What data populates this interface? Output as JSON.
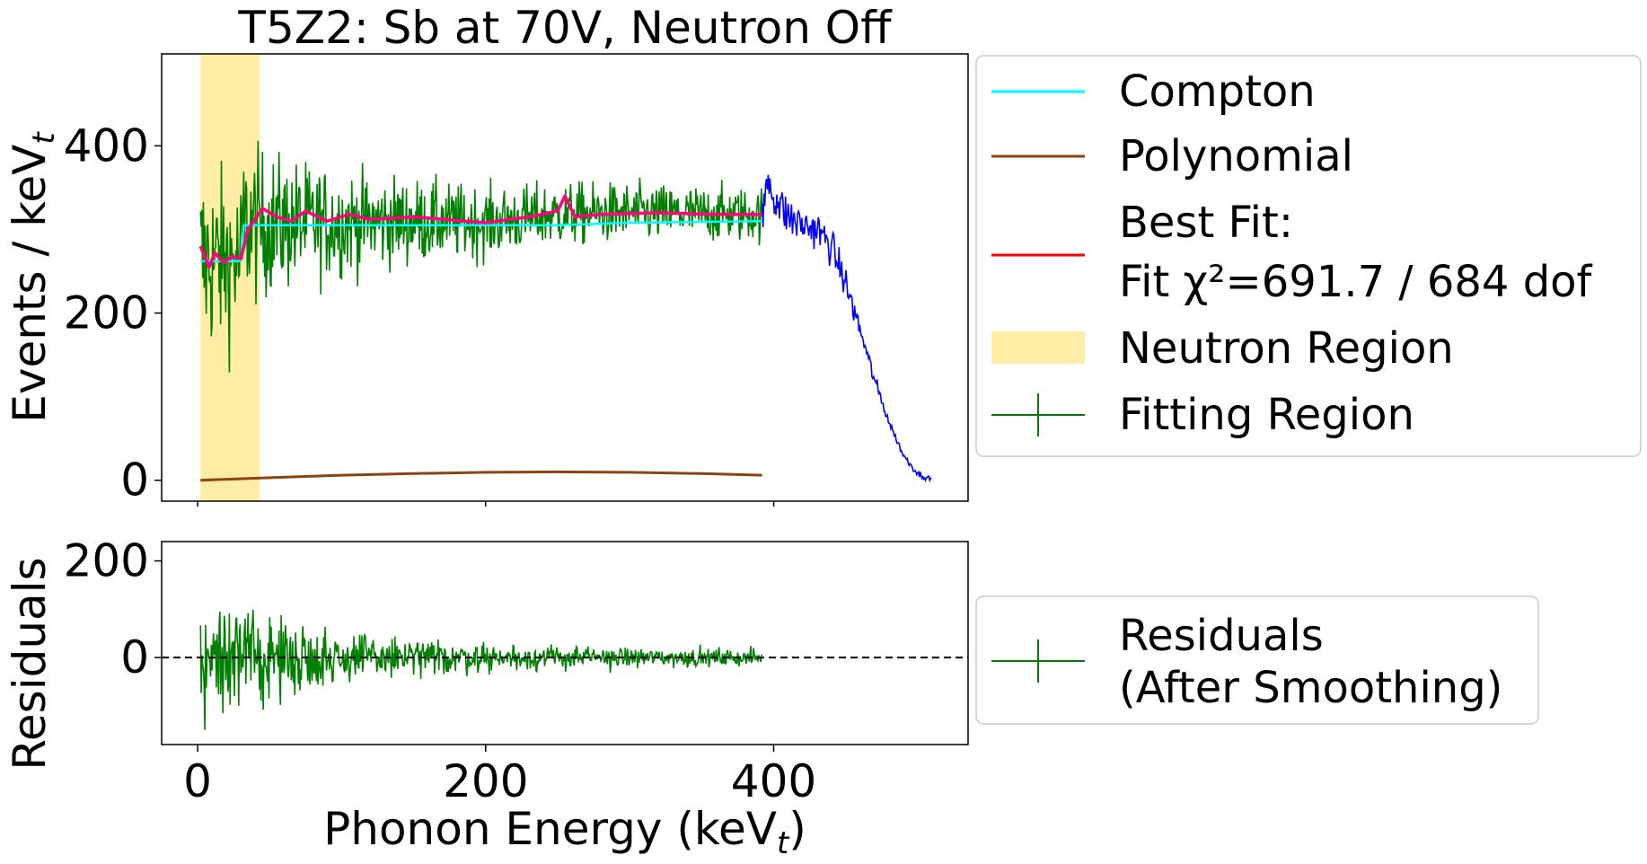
{
  "chart_data": [
    {
      "type": "line",
      "title": "T5Z2: Sb at 70V, Neutron Off",
      "ylabel": {
        "main": "Events / keV",
        "sub": "t"
      },
      "xlim": [
        -25,
        535
      ],
      "ylim": [
        -25,
        510
      ],
      "yticks": [
        0,
        200,
        400
      ],
      "ytick_labels": [
        "0",
        "200",
        "400"
      ],
      "neutron_region": {
        "x_start": 2,
        "x_end": 43
      },
      "series": [
        {
          "name": "Compton",
          "color": "#00ffff",
          "x": [
            2,
            30,
            32,
            40,
            100,
            150,
            200,
            250,
            300,
            392
          ],
          "y": [
            262,
            262,
            305,
            305,
            305,
            305,
            305,
            305,
            308,
            310
          ]
        },
        {
          "name": "Polynomial",
          "color": "#8b4513",
          "x": [
            2,
            50,
            100,
            150,
            200,
            250,
            300,
            350,
            392
          ],
          "y": [
            0,
            3,
            6,
            8,
            9.5,
            10,
            9.5,
            8,
            6
          ]
        },
        {
          "name": "Best Fit:",
          "name_line2": "Fit χ²=691.7 / 684 dof",
          "color": "#ff0000",
          "x": [
            2,
            8,
            12,
            18,
            24,
            30,
            35,
            45,
            55,
            65,
            75,
            90,
            105,
            120,
            150,
            200,
            230,
            250,
            255,
            262,
            280,
            320,
            360,
            392
          ],
          "y": [
            280,
            255,
            272,
            260,
            268,
            265,
            300,
            325,
            315,
            310,
            322,
            310,
            318,
            312,
            315,
            308,
            315,
            322,
            340,
            315,
            318,
            320,
            318,
            318
          ]
        },
        {
          "name": "Neutron Region",
          "color": "#ffe680"
        },
        {
          "name": "Fitting Region",
          "color": "#007f00",
          "x_range": [
            2,
            392
          ],
          "baseline_x": [
            2,
            30,
            32,
            150,
            200,
            250,
            300,
            392
          ],
          "baseline_y": [
            262,
            262,
            305,
            310,
            308,
            318,
            320,
            318
          ],
          "spread_start": 80,
          "spread_end": 28
        },
        {
          "name": "",
          "color": "#0000ff",
          "x": [
            392,
            396,
            400,
            410,
            420,
            430,
            440,
            450,
            460,
            470,
            480,
            490,
            500,
            510
          ],
          "y": [
            310,
            365,
            340,
            315,
            305,
            300,
            280,
            235,
            180,
            120,
            70,
            30,
            8,
            0
          ]
        }
      ]
    },
    {
      "type": "line",
      "xlabel": {
        "main": "Phonon Energy (keV",
        "sub": "t",
        "tail": ")"
      },
      "ylabel": "Residuals",
      "xlim": [
        -25,
        535
      ],
      "ylim": [
        -180,
        240
      ],
      "xticks": [
        0,
        200,
        400
      ],
      "xtick_labels": [
        "0",
        "200",
        "400"
      ],
      "yticks": [
        0,
        200
      ],
      "ytick_labels": [
        "0",
        "200"
      ],
      "reference_line_y": 0,
      "series": [
        {
          "name": "Residuals",
          "name_line2": "(After Smoothing)",
          "color": "#007f00",
          "x_range": [
            2,
            392
          ],
          "spread_start": 100,
          "spread_end": 14
        }
      ]
    }
  ]
}
